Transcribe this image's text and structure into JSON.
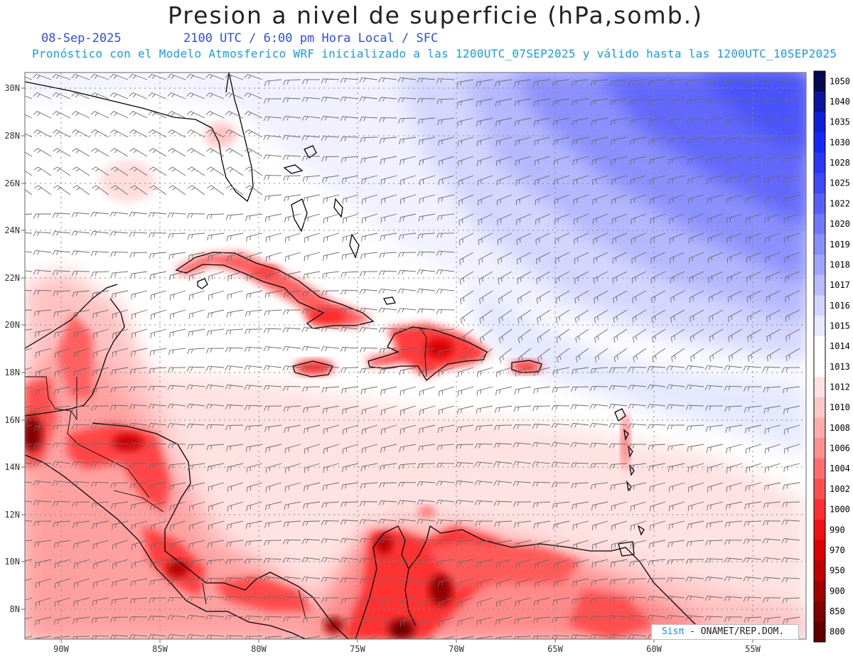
{
  "header": {
    "title": "Presion a nivel de superficie (hPa,somb.)",
    "date": "08-Sep-2025",
    "time": "2100 UTC / 6:00 pm Hora Local / SFC",
    "subtitle": "Pronóstico con el Modelo Atmosferico WRF inicializado a las 1200UTC_07SEP2025 y válido hasta las  1200UTC_10SEP2025"
  },
  "map": {
    "lat_labels": [
      "30N",
      "28N",
      "26N",
      "24N",
      "22N",
      "20N",
      "18N",
      "16N",
      "14N",
      "12N",
      "10N",
      "8N"
    ],
    "lon_labels": [
      "90W",
      "85W",
      "80W",
      "75W",
      "70W",
      "65W",
      "60W",
      "55W"
    ],
    "colors": {
      "low": "#e8201c",
      "high": "#4c52ff",
      "neutral": "#ffffff"
    }
  },
  "colorbar": {
    "levels": [
      "1050",
      "1040",
      "1035",
      "1030",
      "1028",
      "1025",
      "1022",
      "1020",
      "1019",
      "1018",
      "1017",
      "1016",
      "1015",
      "1014",
      "1013",
      "1012",
      "1010",
      "1008",
      "1006",
      "1004",
      "1002",
      "1000",
      "990",
      "970",
      "950",
      "900",
      "850",
      "800"
    ],
    "colors": [
      "#060a50",
      "#0c14a0",
      "#1020d8",
      "#1428f8",
      "#2a38fa",
      "#4048fb",
      "#5860fc",
      "#7078fc",
      "#8890fd",
      "#a0a6fd",
      "#b8bcfe",
      "#d2d4fe",
      "#e8e8ff",
      "#ffffff",
      "#ffffff",
      "#ffe2e2",
      "#ffc8c8",
      "#ffacac",
      "#ff8e8e",
      "#ff6e6e",
      "#ff4e4e",
      "#ff2e2e",
      "#f01010",
      "#dc0000",
      "#c00000",
      "#a00000",
      "#800000",
      "#600000"
    ]
  },
  "credit": {
    "brand": "Sisπ",
    "text": "- ONAMET/REP.DOM."
  }
}
